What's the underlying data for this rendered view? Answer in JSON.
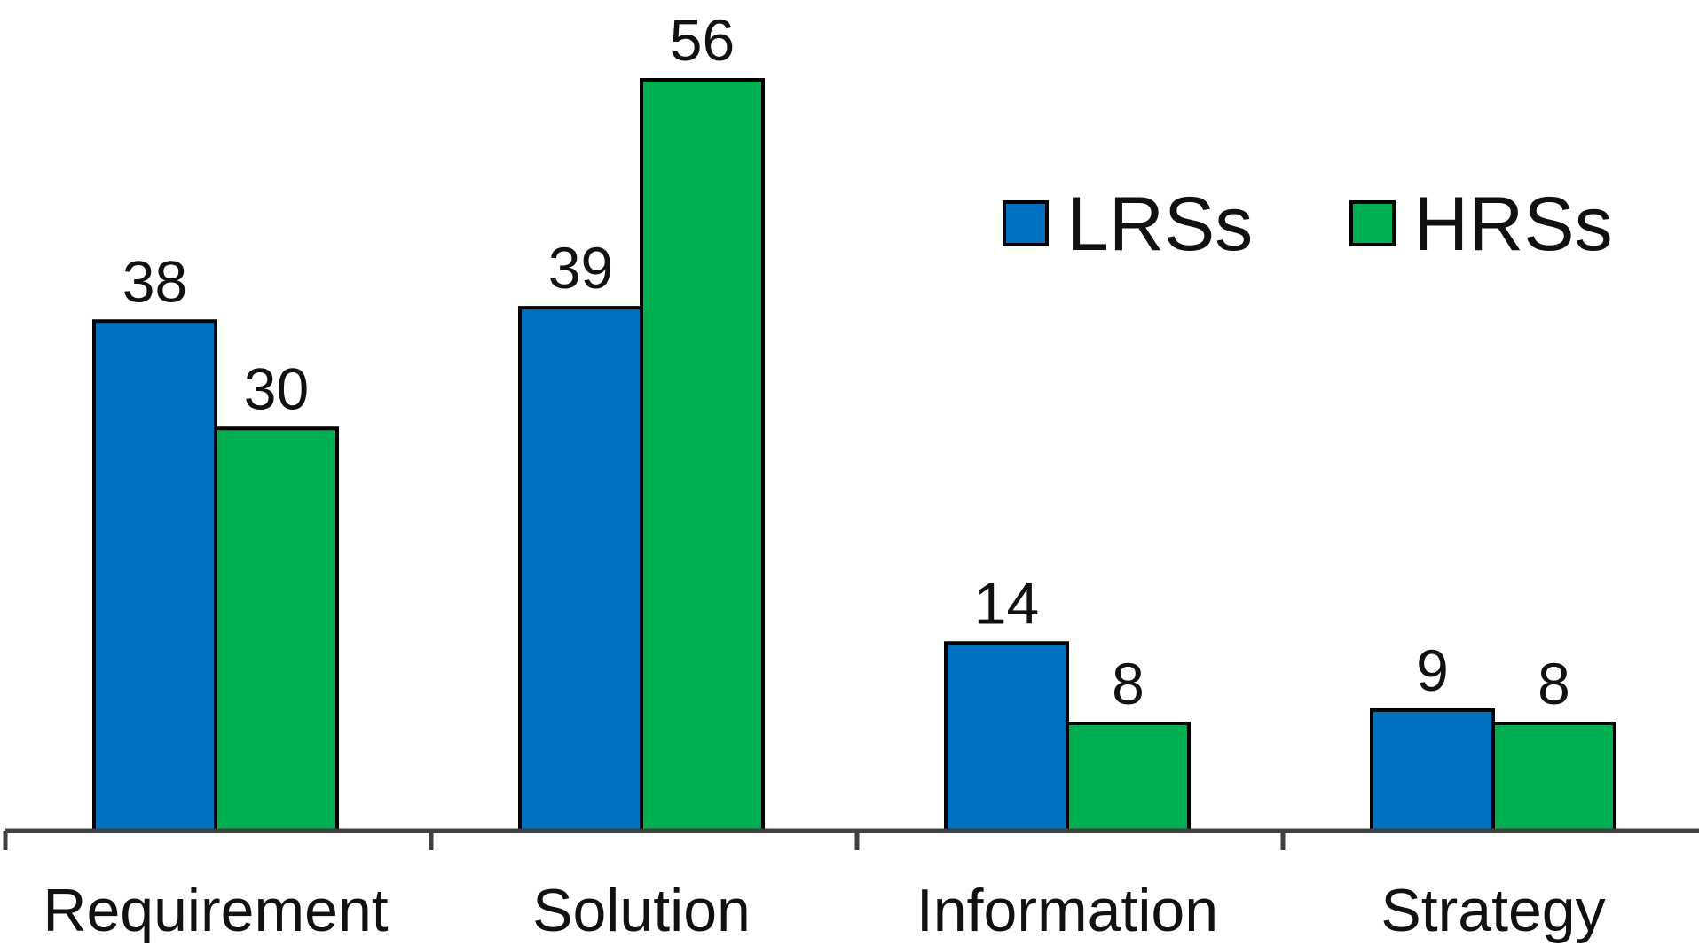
{
  "chart_data": {
    "type": "bar",
    "title": "",
    "xlabel": "",
    "ylabel": "",
    "categories": [
      "Requirement",
      "Solution",
      "Information",
      "Strategy"
    ],
    "series": [
      {
        "name": "LRSs",
        "color": "#0070C0",
        "values": [
          38,
          39,
          14,
          9
        ]
      },
      {
        "name": "HRSs",
        "color": "#00B050",
        "values": [
          30,
          56,
          8,
          8
        ]
      }
    ],
    "data_labels": true,
    "ylim": [
      0,
      56
    ],
    "grid": false,
    "legend_position": "top-right",
    "axis_color": "#404040",
    "bar_outline_color": "#000000"
  }
}
